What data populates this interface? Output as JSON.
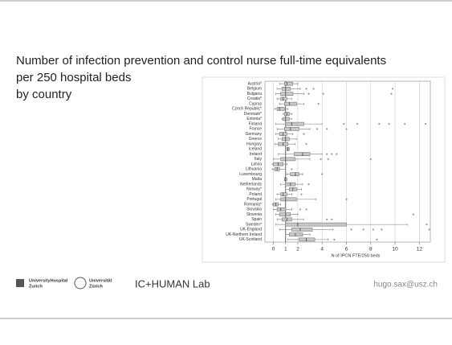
{
  "slide": {
    "title_lines": [
      "Number of infection prevention and control nurse full-time equivalents",
      "per 250 hospital beds",
      "by country"
    ],
    "footer": {
      "logo1": [
        "UniversityHospital",
        "Zurich"
      ],
      "logo2": [
        "Universität",
        "Zürich"
      ],
      "lab": "IC+HUMAN Lab",
      "email": "hugo.sax@usz.ch"
    }
  },
  "chart_data": {
    "type": "box",
    "x_label": "N of IPCN FTE/250 beds",
    "categories": [
      "Austria*",
      "Belgium",
      "Bulgaria",
      "Croatia*",
      "Cyprus",
      "Czech Republic*",
      "Denmark*",
      "Estonia*",
      "Finland",
      "France",
      "Germany",
      "Greece",
      "Hungary",
      "Iceland",
      "Ireland",
      "Italy",
      "Latvia",
      "Lithuania",
      "Luxembourg",
      "Malta",
      "Netherlands",
      "Norway*",
      "Poland",
      "Portugal",
      "Romania*",
      "Slovakia",
      "Slovenia",
      "Spain",
      "Sweden*",
      "UK-England",
      "UK-Northern Ireland",
      "UK-Scotland"
    ],
    "boxes": [
      {
        "low": 0.5,
        "q1": 0.9,
        "median": 1.1,
        "q3": 1.6,
        "high": 2.0,
        "outliers": []
      },
      {
        "low": 0.3,
        "q1": 0.7,
        "median": 1.0,
        "q3": 1.4,
        "high": 2.2,
        "outliers": [
          2.7,
          3.3,
          9.8
        ]
      },
      {
        "low": 0.2,
        "q1": 0.6,
        "median": 1.0,
        "q3": 1.6,
        "high": 2.5,
        "outliers": [
          2.9,
          4.1,
          9.7
        ]
      },
      {
        "low": 0.3,
        "q1": 0.6,
        "median": 0.8,
        "q3": 1.1,
        "high": 1.5,
        "outliers": []
      },
      {
        "low": 0.5,
        "q1": 0.9,
        "median": 1.3,
        "q3": 1.9,
        "high": 2.5,
        "outliers": [
          3.7
        ]
      },
      {
        "low": 0.1,
        "q1": 0.3,
        "median": 0.5,
        "q3": 0.9,
        "high": 1.2,
        "outliers": []
      },
      {
        "low": 0.8,
        "q1": 0.9,
        "median": 1.1,
        "q3": 1.3,
        "high": 1.5,
        "outliers": []
      },
      {
        "low": 0.7,
        "q1": 0.8,
        "median": 1.0,
        "q3": 1.3,
        "high": 1.5,
        "outliers": []
      },
      {
        "low": 0.2,
        "q1": 1.0,
        "median": 1.5,
        "q3": 2.5,
        "high": 4.0,
        "outliers": [
          5.8,
          6.9,
          8.7,
          9.5,
          10.8,
          12.5
        ]
      },
      {
        "low": 0.3,
        "q1": 0.9,
        "median": 1.4,
        "q3": 2.1,
        "high": 3.0,
        "outliers": [
          3.6,
          4.4,
          6.0
        ]
      },
      {
        "low": 0.2,
        "q1": 0.5,
        "median": 0.8,
        "q3": 1.1,
        "high": 1.6,
        "outliers": [
          2.5
        ]
      },
      {
        "low": 0.4,
        "q1": 0.7,
        "median": 1.0,
        "q3": 1.3,
        "high": 1.9,
        "outliers": []
      },
      {
        "low": 0.1,
        "q1": 0.4,
        "median": 0.8,
        "q3": 1.2,
        "high": 1.8,
        "outliers": [
          2.7
        ]
      },
      {
        "low": 1.1,
        "q1": 1.1,
        "median": 1.2,
        "q3": 1.3,
        "high": 1.3,
        "outliers": []
      },
      {
        "low": 0.4,
        "q1": 1.7,
        "median": 2.4,
        "q3": 3.0,
        "high": 4.0,
        "outliers": [
          4.4,
          4.8,
          5.2
        ]
      },
      {
        "low": 0.0,
        "q1": 0.6,
        "median": 1.0,
        "q3": 1.8,
        "high": 3.0,
        "outliers": [
          3.9,
          4.5,
          8.0
        ]
      },
      {
        "low": -0.1,
        "q1": 0.0,
        "median": 0.4,
        "q3": 0.8,
        "high": 1.1,
        "outliers": []
      },
      {
        "low": -0.1,
        "q1": 0.1,
        "median": 0.3,
        "q3": 0.5,
        "high": 1.0,
        "outliers": [
          1.5
        ]
      },
      {
        "low": 1.1,
        "q1": 1.4,
        "median": 1.8,
        "q3": 2.1,
        "high": 2.4,
        "outliers": [
          4.0
        ]
      },
      {
        "low": 0.9,
        "q1": 0.9,
        "median": 1.0,
        "q3": 1.1,
        "high": 1.1,
        "outliers": []
      },
      {
        "low": 0.6,
        "q1": 1.0,
        "median": 1.4,
        "q3": 1.8,
        "high": 2.4,
        "outliers": [
          2.9
        ]
      },
      {
        "low": 1.0,
        "q1": 1.3,
        "median": 1.6,
        "q3": 1.9,
        "high": 2.3,
        "outliers": []
      },
      {
        "low": 0.3,
        "q1": 0.6,
        "median": 0.8,
        "q3": 1.1,
        "high": 1.5,
        "outliers": [
          2.3
        ]
      },
      {
        "low": 0.2,
        "q1": 0.6,
        "median": 1.0,
        "q3": 1.9,
        "high": 3.5,
        "outliers": [
          6.0
        ]
      },
      {
        "low": -0.1,
        "q1": 0.0,
        "median": 0.2,
        "q3": 0.4,
        "high": 0.6,
        "outliers": []
      },
      {
        "low": 0.0,
        "q1": 0.3,
        "median": 0.6,
        "q3": 1.0,
        "high": 1.5,
        "outliers": [
          2.2,
          2.7
        ]
      },
      {
        "low": 0.2,
        "q1": 0.5,
        "median": 1.0,
        "q3": 1.4,
        "high": 2.0,
        "outliers": [
          11.5
        ]
      },
      {
        "low": 0.3,
        "q1": 0.7,
        "median": 1.1,
        "q3": 1.5,
        "high": 2.5,
        "outliers": [
          4.4,
          4.8
        ]
      },
      {
        "low": 0.2,
        "q1": 1.0,
        "median": 2.0,
        "q3": 6.0,
        "high": 11.0,
        "outliers": [
          12.6
        ]
      },
      {
        "low": 0.5,
        "q1": 1.5,
        "median": 2.2,
        "q3": 3.2,
        "high": 4.9,
        "outliers": [
          6.4,
          7.4,
          8.2,
          8.9,
          12.8
        ]
      },
      {
        "low": 1.0,
        "q1": 1.3,
        "median": 1.8,
        "q3": 2.4,
        "high": 3.0,
        "outliers": []
      },
      {
        "low": 1.2,
        "q1": 2.1,
        "median": 2.7,
        "q3": 3.4,
        "high": 4.5,
        "outliers": [
          5.0,
          8.5
        ]
      }
    ],
    "color": "#c8c8c8",
    "xlim": [
      -0.7,
      12.9
    ],
    "xticks": [
      0,
      1,
      2,
      4,
      6,
      8,
      10,
      12
    ],
    "grid": true,
    "reference_line": 1
  }
}
